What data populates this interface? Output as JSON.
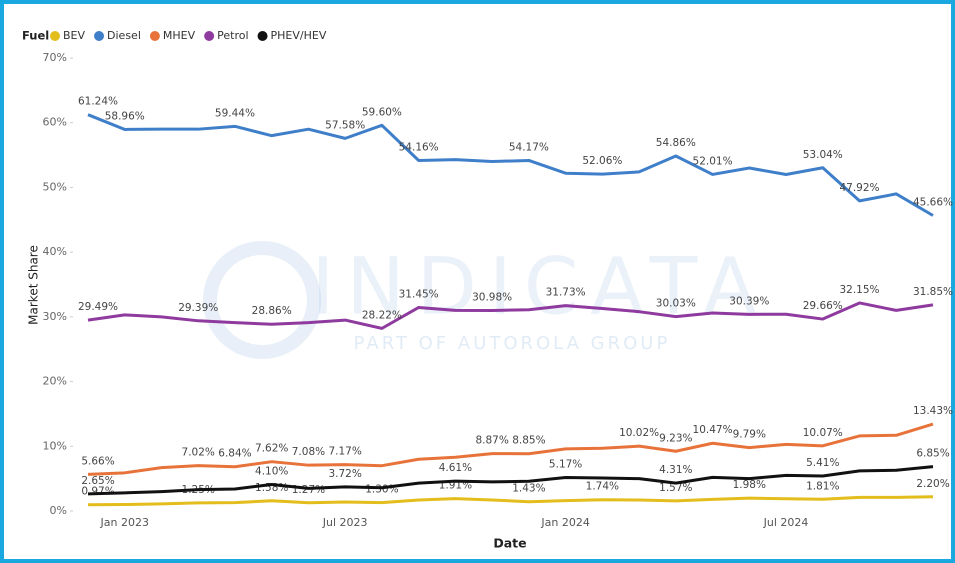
{
  "chart_data": {
    "type": "line",
    "legend_title": "Fuel",
    "x_label": "Date",
    "y_label": "Market Share",
    "watermark": "INDICATA",
    "watermark_subtitle": "PART OF AUTOROLA GROUP",
    "categories": [
      null,
      "Jan 2023",
      null,
      null,
      null,
      null,
      null,
      "Jul 2023",
      null,
      null,
      null,
      null,
      null,
      "Jan 2024",
      null,
      null,
      null,
      null,
      null,
      "Jul 2024",
      null,
      null,
      null,
      null
    ],
    "ylim": [
      0,
      70
    ],
    "yticks": [
      {
        "value": 0,
        "label": "0%"
      },
      {
        "value": 10,
        "label": "10%"
      },
      {
        "value": 20,
        "label": "20%"
      },
      {
        "value": 30,
        "label": "30%"
      },
      {
        "value": 40,
        "label": "40%"
      },
      {
        "value": 50,
        "label": "50%"
      },
      {
        "value": 60,
        "label": "60%"
      },
      {
        "value": 70,
        "label": "70%"
      }
    ],
    "grid": false,
    "legend": "top-left",
    "series": [
      {
        "name": "BEV",
        "color": "#e3bd1c",
        "values": [
          0.97,
          1.0,
          1.1,
          1.25,
          1.3,
          1.58,
          1.27,
          1.4,
          1.3,
          1.7,
          1.91,
          1.7,
          1.43,
          1.6,
          1.74,
          1.7,
          1.57,
          1.8,
          1.98,
          1.9,
          1.81,
          2.1,
          2.1,
          2.2
        ],
        "value_labels": [
          "0.97%",
          null,
          null,
          "1.25%",
          null,
          "1.58%",
          "1.27%",
          null,
          "1.30%",
          null,
          "1.91%",
          null,
          "1.43%",
          null,
          "1.74%",
          null,
          "1.57%",
          null,
          "1.98%",
          null,
          "1.81%",
          null,
          null,
          "2.20%"
        ]
      },
      {
        "name": "Diesel",
        "color": "#3f7fc9",
        "values": [
          61.24,
          58.96,
          59.0,
          59.0,
          59.44,
          58.0,
          59.0,
          57.58,
          59.6,
          54.16,
          54.3,
          54.0,
          54.17,
          52.2,
          52.06,
          52.4,
          54.86,
          52.01,
          53.0,
          52.0,
          53.04,
          47.92,
          49.0,
          45.66
        ],
        "value_labels": [
          "61.24%",
          "58.96%",
          null,
          null,
          "59.44%",
          null,
          null,
          "57.58%",
          "59.60%",
          "54.16%",
          null,
          null,
          "54.17%",
          null,
          "52.06%",
          null,
          "54.86%",
          "52.01%",
          null,
          null,
          "53.04%",
          "47.92%",
          null,
          "45.66%"
        ]
      },
      {
        "name": "MHEV",
        "color": "#e8733a",
        "values": [
          5.66,
          5.9,
          6.7,
          7.02,
          6.84,
          7.62,
          7.08,
          7.17,
          7.0,
          8.0,
          8.3,
          8.87,
          8.85,
          9.6,
          9.7,
          10.02,
          9.23,
          10.47,
          9.79,
          10.3,
          10.07,
          11.6,
          11.7,
          13.43
        ],
        "value_labels": [
          "5.66%",
          null,
          null,
          "7.02%",
          "6.84%",
          "7.62%",
          "7.08%",
          "7.17%",
          null,
          null,
          null,
          "8.87%",
          "8.85%",
          null,
          null,
          "10.02%",
          "9.23%",
          "10.47%",
          "9.79%",
          null,
          "10.07%",
          null,
          null,
          "13.43%"
        ]
      },
      {
        "name": "Petrol",
        "color": "#8e3a9e",
        "values": [
          29.49,
          30.3,
          30.0,
          29.39,
          29.1,
          28.86,
          29.1,
          29.5,
          28.22,
          31.45,
          31.0,
          30.98,
          31.1,
          31.73,
          31.3,
          30.8,
          30.03,
          30.6,
          30.39,
          30.4,
          29.66,
          32.15,
          31.0,
          31.85
        ],
        "value_labels": [
          "29.49%",
          null,
          null,
          "29.39%",
          null,
          "28.86%",
          null,
          null,
          "28.22%",
          "31.45%",
          null,
          "30.98%",
          null,
          "31.73%",
          null,
          null,
          "30.03%",
          null,
          "30.39%",
          null,
          "29.66%",
          "32.15%",
          null,
          "31.85%"
        ]
      },
      {
        "name": "PHEV/HEV",
        "color": "#111111",
        "values": [
          2.65,
          2.8,
          3.0,
          3.3,
          3.4,
          4.1,
          3.5,
          3.72,
          3.6,
          4.3,
          4.61,
          4.5,
          4.6,
          5.17,
          5.1,
          5.0,
          4.31,
          5.2,
          5.0,
          5.5,
          5.41,
          6.2,
          6.3,
          6.85
        ],
        "value_labels": [
          "2.65%",
          null,
          null,
          null,
          null,
          "4.10%",
          null,
          "3.72%",
          null,
          null,
          "4.61%",
          null,
          null,
          "5.17%",
          null,
          null,
          "4.31%",
          null,
          null,
          null,
          "5.41%",
          null,
          null,
          "6.85%"
        ]
      }
    ]
  }
}
